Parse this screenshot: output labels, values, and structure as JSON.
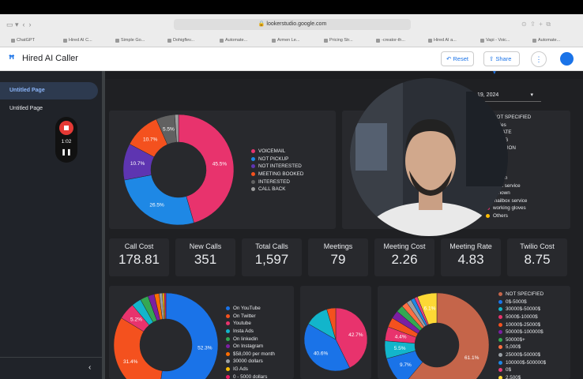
{
  "browser": {
    "url": "lookerstudio.google.com",
    "tabs": [
      "ChatGPT",
      "Hired AI C...",
      "Simple Go...",
      "Dohigflev...",
      "Automate...",
      "Armen Le...",
      "Pricing Str...",
      "-creator-th...",
      "Hired AI a...",
      "Vapi - Voic...",
      "Automate..."
    ]
  },
  "header": {
    "title": "Hired AI Caller",
    "reset": "Reset",
    "share": "Share"
  },
  "sidebar": {
    "pages": [
      "Untitled Page",
      "Untitled Page"
    ],
    "timer": "1:02"
  },
  "date_range": "19, 2024",
  "kpis": [
    {
      "label": "Call Cost",
      "value": "178.81"
    },
    {
      "label": "New Calls",
      "value": "351"
    },
    {
      "label": "Total Calls",
      "value": "1,597"
    },
    {
      "label": "Meetings",
      "value": "79"
    },
    {
      "label": "Meeting Cost",
      "value": "2.26"
    },
    {
      "label": "Meeting Rate",
      "value": "4.83"
    },
    {
      "label": "Twilio Cost",
      "value": "8.75"
    }
  ],
  "partial_legend": [
    "NOT SPECIFIED",
    "-sales",
    "ESTATE",
    "ETING",
    "OMATION",
    "state",
    "CARE",
    "",
    "known",
    "ilbox service",
    "nknown",
    " mailbox service",
    "working gloves",
    "Others"
  ],
  "charts": [
    {
      "legend": [
        "VOICEMAIL",
        "NOT PICKUP",
        "NOT INTERESTED",
        "MEETING BOOKED",
        "INTERESTED",
        "CALL BACK"
      ],
      "colors": [
        "#e8336d",
        "#1e88e5",
        "#5e35b1",
        "#f4511e",
        "#616161",
        "#9e9e9e"
      ],
      "values": [
        45.5,
        26.5,
        10.7,
        10.7,
        5.5,
        1.1
      ],
      "value_labels": [
        "45.5%",
        "26.5%",
        "10.7%",
        "10.7%",
        "5.5%",
        null
      ]
    },
    {
      "legend": [
        "On YouTube",
        "On Twitter",
        "Youtube",
        "Insta Ads",
        "On linkedin",
        "On Instagram",
        "$58,000 per month",
        "30000 dollars",
        "IG Ads",
        "0 - 5000 dollars"
      ],
      "colors": [
        "#1a73e8",
        "#f4511e",
        "#e8336d",
        "#12b5cb",
        "#34a853",
        "#7b1fa2",
        "#ff6d00",
        "#9aa0a6",
        "#fbbc04",
        "#e91e63"
      ],
      "values": [
        52.3,
        31.4,
        5.2,
        3,
        2.5,
        2,
        1.5,
        1,
        0.6,
        0.5
      ],
      "value_labels": [
        "52.3%",
        "31.4%",
        "5.2%",
        null,
        null,
        null,
        null,
        null,
        null,
        null
      ]
    },
    {
      "legend": [],
      "colors": [
        "#e8336d",
        "#1a73e8",
        "#12b5cb",
        "#f4511e"
      ],
      "values": [
        42.7,
        40.6,
        12.1,
        4.6
      ],
      "value_labels": [
        "42.7%",
        "40.6%",
        null,
        null
      ]
    },
    {
      "legend": [
        "NOT SPECIFIED",
        "0$-5000$",
        "30000$-50000$",
        "5000$-10000$",
        "10000$-25000$",
        "50000$-100000$",
        "50000$+",
        "5,000$",
        "25000$-50000$",
        "100000$-500000$",
        "0$",
        "2,500$"
      ],
      "colors": [
        "#c5654a",
        "#1a73e8",
        "#12b5cb",
        "#e8336d",
        "#f4511e",
        "#7b1fa2",
        "#34a853",
        "#ff7043",
        "#9aa0a6",
        "#1e88e5",
        "#ec407a",
        "#fdd835"
      ],
      "values": [
        61.1,
        9.7,
        5.5,
        4.4,
        3,
        2.5,
        2.2,
        1.8,
        1.5,
        1.2,
        1,
        6.1
      ],
      "value_labels": [
        "61.1%",
        "9.7%",
        "5.5%",
        "4.4%",
        null,
        null,
        null,
        null,
        null,
        null,
        null,
        "6.1%"
      ]
    }
  ]
}
